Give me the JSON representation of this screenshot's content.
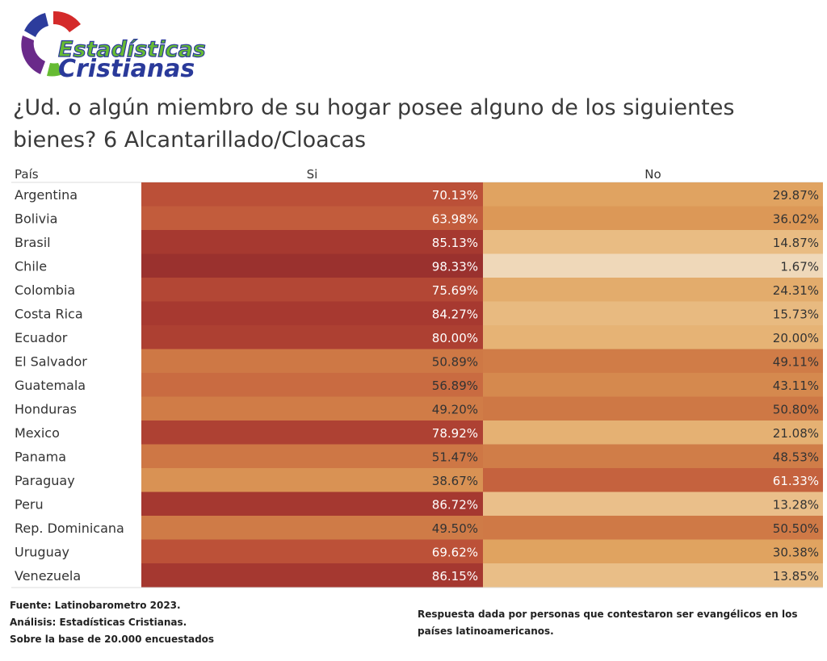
{
  "brand": {
    "line1": "Estadísticas",
    "line2": "Cristianas",
    "colors": {
      "red": "#d42a2a",
      "blue": "#2c3c9c",
      "purple": "#6a2a8a",
      "green": "#66bb33",
      "text_blue": "#2a3a9a"
    }
  },
  "title": {
    "line1": "¿Ud. o algún miembro de su hogar posee alguno de los siguientes",
    "line2": "bienes? 6  Alcantarillado/Cloacas"
  },
  "chart_data": {
    "type": "heatmap",
    "row_header": "País",
    "columns": [
      "Si",
      "No"
    ],
    "rows": [
      {
        "country": "Argentina",
        "si": "70.13%",
        "no": "29.87%",
        "si_value": 70.13,
        "no_value": 29.87
      },
      {
        "country": "Bolivia",
        "si": "63.98%",
        "no": "36.02%",
        "si_value": 63.98,
        "no_value": 36.02
      },
      {
        "country": "Brasil",
        "si": "85.13%",
        "no": "14.87%",
        "si_value": 85.13,
        "no_value": 14.87
      },
      {
        "country": "Chile",
        "si": "98.33%",
        "no": "1.67%",
        "si_value": 98.33,
        "no_value": 1.67
      },
      {
        "country": "Colombia",
        "si": "75.69%",
        "no": "24.31%",
        "si_value": 75.69,
        "no_value": 24.31
      },
      {
        "country": "Costa Rica",
        "si": "84.27%",
        "no": "15.73%",
        "si_value": 84.27,
        "no_value": 15.73
      },
      {
        "country": "Ecuador",
        "si": "80.00%",
        "no": "20.00%",
        "si_value": 80.0,
        "no_value": 20.0
      },
      {
        "country": "El Salvador",
        "si": "50.89%",
        "no": "49.11%",
        "si_value": 50.89,
        "no_value": 49.11
      },
      {
        "country": "Guatemala",
        "si": "56.89%",
        "no": "43.11%",
        "si_value": 56.89,
        "no_value": 43.11
      },
      {
        "country": "Honduras",
        "si": "49.20%",
        "no": "50.80%",
        "si_value": 49.2,
        "no_value": 50.8
      },
      {
        "country": "Mexico",
        "si": "78.92%",
        "no": "21.08%",
        "si_value": 78.92,
        "no_value": 21.08
      },
      {
        "country": "Panama",
        "si": "51.47%",
        "no": "48.53%",
        "si_value": 51.47,
        "no_value": 48.53
      },
      {
        "country": "Paraguay",
        "si": "38.67%",
        "no": "61.33%",
        "si_value": 38.67,
        "no_value": 61.33
      },
      {
        "country": "Peru",
        "si": "86.72%",
        "no": "13.28%",
        "si_value": 86.72,
        "no_value": 13.28
      },
      {
        "country": "Rep. Dominicana",
        "si": "49.50%",
        "no": "50.50%",
        "si_value": 49.5,
        "no_value": 50.5
      },
      {
        "country": "Uruguay",
        "si": "69.62%",
        "no": "30.38%",
        "si_value": 69.62,
        "no_value": 30.38
      },
      {
        "country": "Venezuela",
        "si": "86.15%",
        "no": "13.85%",
        "si_value": 86.15,
        "no_value": 13.85
      }
    ],
    "color_scale": [
      "#f0dcc0",
      "#e8b87c",
      "#de9e5a",
      "#cf7a46",
      "#c0563a",
      "#a83a30",
      "#98302e"
    ],
    "light_text_threshold": 60,
    "text_colors": {
      "light": "#ffffff",
      "dark": "#333333"
    }
  },
  "footer": {
    "left": [
      "Fuente: Latinobarometro 2023.",
      "Análisis: Estadísticas Cristianas.",
      "Sobre la base de 20.000 encuestados"
    ],
    "right": [
      "Respuesta dada por personas que contestaron ser evangélicos en los",
      "países latinoamericanos."
    ]
  }
}
